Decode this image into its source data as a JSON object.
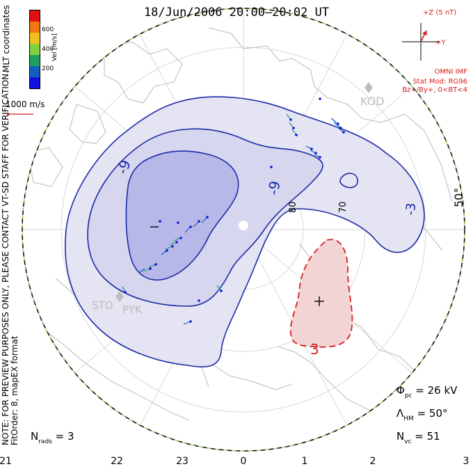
{
  "title": "18/Jun/2006 20:00–20:02 UT",
  "side_note_line1": "NOTE: FOR PREVIEW PURPOSES ONLY, PLEASE CONTACT VT-SD STAFF FOR VERIFICATION.",
  "side_note_line2": "FitOrder: 8, mapEX format",
  "coord_system": "MLT coordinates",
  "colorbar": {
    "label": "Vel [m/s]",
    "ticks": [
      "600",
      "400",
      "200"
    ],
    "colors": [
      "#e01010",
      "#f07810",
      "#f0c020",
      "#80d040",
      "#20a060",
      "#1060c0",
      "#1010e0"
    ]
  },
  "scale": {
    "label": "1000 m/s",
    "color": "#d42020"
  },
  "imf": {
    "z_label": "+Z (5 nT)",
    "y_label": "+Y",
    "source": "OMNI IMF",
    "stat_mod": "Stat Mod: RG96",
    "condition": "Bz+/By+, 0<BT<4",
    "color": "#d42020"
  },
  "stations": [
    "KOD",
    "STO",
    "PYK"
  ],
  "contour_labels": [
    "-9",
    "-9",
    "-3",
    "3"
  ],
  "latitude_label": "50°",
  "grid_labels": [
    "80",
    "70"
  ],
  "stats": {
    "n_rads_label": "N",
    "n_rads_sub": "rads",
    "n_rads_value": "= 3",
    "phi_label": "Φ",
    "phi_sub": "pc",
    "phi_value": "= 26 kV",
    "lambda_label": "Λ",
    "lambda_sub": "HM",
    "lambda_value": "= 50°",
    "nvc_label": "N",
    "nvc_sub": "vc",
    "nvc_value": "= 51"
  },
  "mlt_ticks": [
    "21",
    "22",
    "23",
    "0",
    "1",
    "2",
    "3"
  ],
  "colors": {
    "negative_cell_outer": "#e4e4f2",
    "negative_cell_mid": "#ccccec",
    "negative_cell_inner": "#b0b0e8",
    "negative_contour": "#1a2aa8",
    "positive_cell": "#f2d4d4",
    "positive_contour": "#d42020",
    "boundary_green": "#8ccc50",
    "coastline": "#c4c4c4",
    "grid": "#d8d8d8"
  }
}
